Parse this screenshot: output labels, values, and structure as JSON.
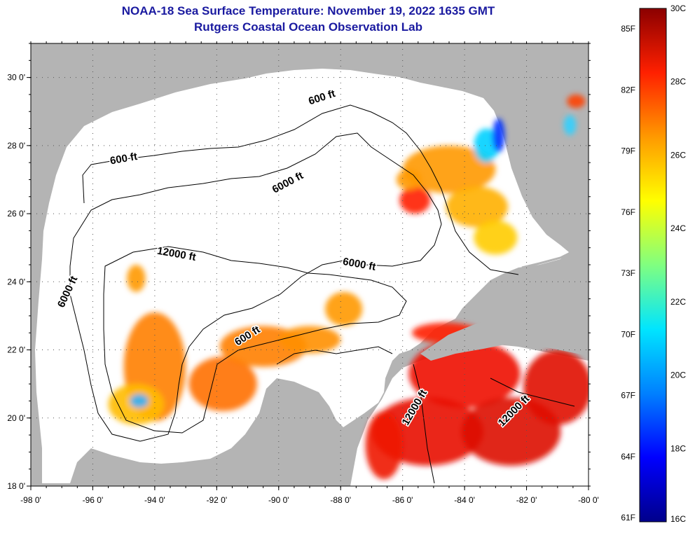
{
  "title": "NOAA-18 Sea Surface Temperature:  November 19, 2022 1635 GMT",
  "subtitle": "Rutgers Coastal Ocean Observation Lab",
  "map": {
    "lon_range": [
      -98,
      -80
    ],
    "lat_range": [
      18,
      31
    ],
    "x_ticks": [
      {
        "value": -98,
        "label": "-98 0'"
      },
      {
        "value": -96,
        "label": "-96 0'"
      },
      {
        "value": -94,
        "label": "-94 0'"
      },
      {
        "value": -92,
        "label": "-92 0'"
      },
      {
        "value": -90,
        "label": "-90 0'"
      },
      {
        "value": -88,
        "label": "-88 0'"
      },
      {
        "value": -86,
        "label": "-86 0'"
      },
      {
        "value": -84,
        "label": "-84 0'"
      },
      {
        "value": -82,
        "label": "-82 0'"
      },
      {
        "value": -80,
        "label": "-80 0'"
      }
    ],
    "y_ticks": [
      {
        "value": 18,
        "label": "18 0'"
      },
      {
        "value": 20,
        "label": "20 0'"
      },
      {
        "value": 22,
        "label": "22 0'"
      },
      {
        "value": 24,
        "label": "24 0'"
      },
      {
        "value": 26,
        "label": "26 0'"
      },
      {
        "value": 28,
        "label": "28 0'"
      },
      {
        "value": 30,
        "label": "30 0'"
      }
    ],
    "grid": "dotted",
    "land_color": "#b4b4b4",
    "ocean_color": "#ffffff",
    "contour_labels": [
      {
        "text": "600 ft",
        "lon": -88.6,
        "lat": 29.4,
        "angle": -18
      },
      {
        "text": "600 ft",
        "lon": -95.0,
        "lat": 27.6,
        "angle": -10
      },
      {
        "text": "6000 ft",
        "lon": -89.7,
        "lat": 26.9,
        "angle": -28
      },
      {
        "text": "12000 ft",
        "lon": -93.3,
        "lat": 24.8,
        "angle": 10
      },
      {
        "text": "6000 ft",
        "lon": -87.4,
        "lat": 24.5,
        "angle": 10
      },
      {
        "text": "6000 ft",
        "lon": -96.8,
        "lat": 23.7,
        "angle": -65
      },
      {
        "text": "600 ft",
        "lon": -91.0,
        "lat": 22.4,
        "angle": -32
      },
      {
        "text": "12000 ft",
        "lon": -85.6,
        "lat": 20.3,
        "angle": -60
      },
      {
        "text": "12000 ft",
        "lon": -82.4,
        "lat": 20.2,
        "angle": -45
      }
    ]
  },
  "colorbar": {
    "stops": [
      "#00008b",
      "#0000ff",
      "#0080ff",
      "#00e5ff",
      "#80ff80",
      "#ffff00",
      "#ff9900",
      "#ff2000",
      "#8b0000"
    ],
    "f_labels": [
      {
        "label": "85F",
        "value": 85
      },
      {
        "label": "82F",
        "value": 82
      },
      {
        "label": "79F",
        "value": 79
      },
      {
        "label": "76F",
        "value": 76
      },
      {
        "label": "73F",
        "value": 73
      },
      {
        "label": "70F",
        "value": 70
      },
      {
        "label": "67F",
        "value": 67
      },
      {
        "label": "64F",
        "value": 64
      },
      {
        "label": "61F",
        "value": 61
      }
    ],
    "c_labels": [
      {
        "label": "30C",
        "value": 30
      },
      {
        "label": "28C",
        "value": 28
      },
      {
        "label": "26C",
        "value": 26
      },
      {
        "label": "24C",
        "value": 24
      },
      {
        "label": "22C",
        "value": 22
      },
      {
        "label": "20C",
        "value": 20
      },
      {
        "label": "18C",
        "value": 18
      },
      {
        "label": "16C",
        "value": 16
      }
    ]
  },
  "sst_patches": [
    {
      "lon": -84.5,
      "lat": 27.3,
      "rx": 1.5,
      "ry": 0.7,
      "color": "#ff9900"
    },
    {
      "lon": -83.6,
      "lat": 26.2,
      "rx": 1.0,
      "ry": 0.6,
      "color": "#ffb000"
    },
    {
      "lon": -83.0,
      "lat": 25.3,
      "rx": 0.7,
      "ry": 0.5,
      "color": "#ffcc00"
    },
    {
      "lon": -83.3,
      "lat": 28.0,
      "rx": 0.4,
      "ry": 0.5,
      "color": "#00d0ff"
    },
    {
      "lon": -82.9,
      "lat": 28.3,
      "rx": 0.2,
      "ry": 0.5,
      "color": "#0030ff"
    },
    {
      "lon": -85.6,
      "lat": 26.4,
      "rx": 0.5,
      "ry": 0.4,
      "color": "#ff2000"
    },
    {
      "lon": -85.8,
      "lat": 27.0,
      "rx": 0.4,
      "ry": 0.3,
      "color": "#ff9900"
    },
    {
      "lon": -94.0,
      "lat": 21.5,
      "rx": 1.0,
      "ry": 1.6,
      "color": "#ff8000"
    },
    {
      "lon": -94.6,
      "lat": 20.4,
      "rx": 0.9,
      "ry": 0.6,
      "color": "#ffbb00"
    },
    {
      "lon": -94.5,
      "lat": 20.5,
      "rx": 0.3,
      "ry": 0.2,
      "color": "#30b0ff"
    },
    {
      "lon": -91.8,
      "lat": 21.0,
      "rx": 1.1,
      "ry": 0.8,
      "color": "#ff7000"
    },
    {
      "lon": -90.5,
      "lat": 22.1,
      "rx": 1.4,
      "ry": 0.6,
      "color": "#ff8000"
    },
    {
      "lon": -89.0,
      "lat": 22.3,
      "rx": 1.0,
      "ry": 0.4,
      "color": "#ff9000"
    },
    {
      "lon": -87.9,
      "lat": 23.2,
      "rx": 0.6,
      "ry": 0.5,
      "color": "#ff9900"
    },
    {
      "lon": -94.6,
      "lat": 24.1,
      "rx": 0.3,
      "ry": 0.4,
      "color": "#ff9900"
    },
    {
      "lon": -84.0,
      "lat": 21.3,
      "rx": 1.8,
      "ry": 1.0,
      "color": "#ee1100"
    },
    {
      "lon": -85.2,
      "lat": 19.6,
      "rx": 1.8,
      "ry": 1.0,
      "color": "#e81000"
    },
    {
      "lon": -82.5,
      "lat": 19.6,
      "rx": 1.6,
      "ry": 1.0,
      "color": "#dd0800"
    },
    {
      "lon": -81.0,
      "lat": 20.9,
      "rx": 1.1,
      "ry": 1.1,
      "color": "#e00a00"
    },
    {
      "lon": -84.6,
      "lat": 22.5,
      "rx": 1.1,
      "ry": 0.3,
      "color": "#ff2000"
    },
    {
      "lon": -86.6,
      "lat": 19.2,
      "rx": 0.6,
      "ry": 1.0,
      "color": "#ee1500"
    },
    {
      "lon": -80.6,
      "lat": 28.6,
      "rx": 0.2,
      "ry": 0.3,
      "color": "#30d0ff"
    },
    {
      "lon": -80.4,
      "lat": 29.3,
      "rx": 0.3,
      "ry": 0.2,
      "color": "#ff4000"
    }
  ]
}
